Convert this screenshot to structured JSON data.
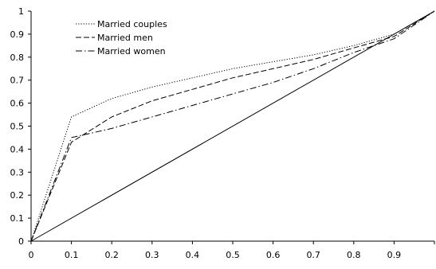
{
  "chart_data": {
    "type": "line",
    "title": "",
    "xlabel": "",
    "ylabel": "",
    "xlim": [
      0,
      1
    ],
    "ylim": [
      0,
      1
    ],
    "grid": false,
    "legend_position": "top-left",
    "x_ticks": [
      "0",
      "0.1",
      "0.2",
      "0.3",
      "0.4",
      "0.5",
      "0.6",
      "0.7",
      "0.8",
      "0.9"
    ],
    "y_ticks": [
      "0",
      "0.1",
      "0.2",
      "0.3",
      "0.4",
      "0.5",
      "0.6",
      "0.7",
      "0.8",
      "0.9",
      "1"
    ],
    "series": [
      {
        "name": "Married couples",
        "style": "dotted",
        "x": [
          0,
          0.1,
          0.2,
          0.3,
          0.4,
          0.5,
          0.6,
          0.7,
          0.8,
          0.9,
          1.0
        ],
        "y": [
          0,
          0.54,
          0.62,
          0.67,
          0.71,
          0.75,
          0.78,
          0.81,
          0.85,
          0.9,
          1.0
        ]
      },
      {
        "name": "Married men",
        "style": "dashed",
        "x": [
          0,
          0.1,
          0.2,
          0.3,
          0.4,
          0.5,
          0.6,
          0.7,
          0.8,
          0.9,
          1.0
        ],
        "y": [
          0,
          0.43,
          0.54,
          0.61,
          0.66,
          0.71,
          0.75,
          0.79,
          0.84,
          0.89,
          1.0
        ]
      },
      {
        "name": "Married women",
        "style": "dashdot",
        "x": [
          0,
          0.1,
          0.2,
          0.3,
          0.4,
          0.5,
          0.6,
          0.7,
          0.8,
          0.9,
          1.0
        ],
        "y": [
          0,
          0.45,
          0.49,
          0.54,
          0.59,
          0.64,
          0.69,
          0.75,
          0.82,
          0.88,
          1.0
        ]
      },
      {
        "name": "",
        "style": "solid",
        "x": [
          0,
          1
        ],
        "y": [
          0,
          1
        ]
      }
    ]
  }
}
